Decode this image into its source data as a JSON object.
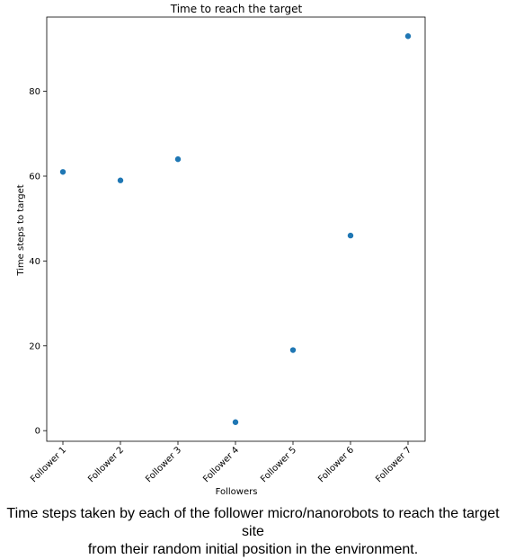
{
  "chart_data": {
    "type": "scatter",
    "title": "Time to reach the target",
    "xlabel": "Followers",
    "ylabel": "Time steps to target",
    "categories": [
      "Follower 1",
      "Follower 2",
      "Follower 3",
      "Follower 4",
      "Follower 5",
      "Follower 6",
      "Follower 7"
    ],
    "values": [
      61,
      59,
      64,
      2,
      19,
      46,
      93
    ],
    "yticks": [
      0,
      20,
      40,
      60,
      80
    ],
    "ylim": [
      -2.5,
      97.5
    ],
    "grid": false,
    "marker_color": "#1f77b4"
  },
  "caption": {
    "line1": "Time steps taken by each of the follower micro/nanorobots to reach the target site",
    "line2": "from their random initial position in the environment."
  }
}
